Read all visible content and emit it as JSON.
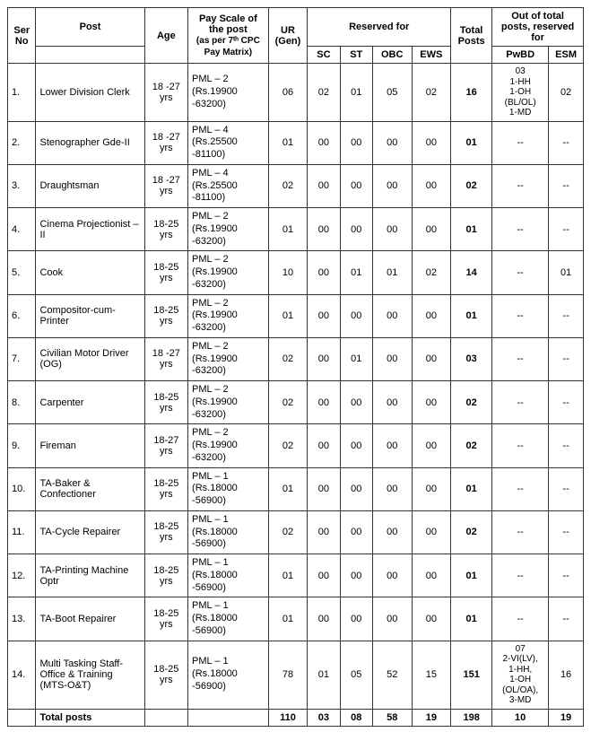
{
  "headers": {
    "ser": "Ser No",
    "post": "Post",
    "age": "Age",
    "pay": "Pay Scale of the post",
    "pay_note": "(as per 7ᵗʰ CPC Pay Matrix)",
    "ur": "UR (Gen)",
    "reserved": "Reserved for",
    "sc": "SC",
    "st": "ST",
    "obc": "OBC",
    "ews": "EWS",
    "total": "Total Posts",
    "out_of": "Out of total posts, reserved for",
    "pwbd": "PwBD",
    "esm": "ESM"
  },
  "rows": [
    {
      "ser": "1.",
      "post": "Lower Division Clerk",
      "age": "18 -27 yrs",
      "pay": "PML – 2 (Rs.19900 -63200)",
      "ur": "06",
      "sc": "02",
      "st": "01",
      "obc": "05",
      "ews": "02",
      "total": "16",
      "pwbd": "03\n1-HH\n1-OH\n(BL/OL)\n1-MD",
      "esm": "02"
    },
    {
      "ser": "2.",
      "post": "Stenographer Gde-II",
      "age": "18 -27 yrs",
      "pay": "PML – 4 (Rs.25500 -81100)",
      "ur": "01",
      "sc": "00",
      "st": "00",
      "obc": "00",
      "ews": "00",
      "total": "01",
      "pwbd": "--",
      "esm": "--"
    },
    {
      "ser": "3.",
      "post": "Draughtsman",
      "age": "18 -27 yrs",
      "pay": "PML – 4 (Rs.25500 -81100)",
      "ur": "02",
      "sc": "00",
      "st": "00",
      "obc": "00",
      "ews": "00",
      "total": "02",
      "pwbd": "--",
      "esm": "--"
    },
    {
      "ser": "4.",
      "post": "Cinema Projectionist –II",
      "age": "18-25 yrs",
      "pay": "PML – 2 (Rs.19900 -63200)",
      "ur": "01",
      "sc": "00",
      "st": "00",
      "obc": "00",
      "ews": "00",
      "total": "01",
      "pwbd": "--",
      "esm": "--"
    },
    {
      "ser": "5.",
      "post": "Cook",
      "age": "18-25 yrs",
      "pay": "PML – 2 (Rs.19900 -63200)",
      "ur": "10",
      "sc": "00",
      "st": "01",
      "obc": "01",
      "ews": "02",
      "total": "14",
      "pwbd": "--",
      "esm": "01"
    },
    {
      "ser": "6.",
      "post": "Compositor-cum-Printer",
      "age": "18-25 yrs",
      "pay": "PML – 2 (Rs.19900 -63200)",
      "ur": "01",
      "sc": "00",
      "st": "00",
      "obc": "00",
      "ews": "00",
      "total": "01",
      "pwbd": "--",
      "esm": "--"
    },
    {
      "ser": "7.",
      "post": "Civilian Motor Driver (OG)",
      "age": "18 -27 yrs",
      "pay": "PML – 2 (Rs.19900 -63200)",
      "ur": "02",
      "sc": "00",
      "st": "01",
      "obc": "00",
      "ews": "00",
      "total": "03",
      "pwbd": "--",
      "esm": "--"
    },
    {
      "ser": "8.",
      "post": "Carpenter",
      "age": "18-25 yrs",
      "pay": "PML – 2 (Rs.19900 -63200)",
      "ur": "02",
      "sc": "00",
      "st": "00",
      "obc": "00",
      "ews": "00",
      "total": "02",
      "pwbd": "--",
      "esm": "--"
    },
    {
      "ser": "9.",
      "post": "Fireman",
      "age": "18-27 yrs",
      "pay": "PML – 2 (Rs.19900 -63200)",
      "ur": "02",
      "sc": "00",
      "st": "00",
      "obc": "00",
      "ews": "00",
      "total": "02",
      "pwbd": "--",
      "esm": "--"
    },
    {
      "ser": "10.",
      "post": "TA-Baker & Confectioner",
      "age": "18-25 yrs",
      "pay": "PML – 1 (Rs.18000 -56900)",
      "ur": "01",
      "sc": "00",
      "st": "00",
      "obc": "00",
      "ews": "00",
      "total": "01",
      "pwbd": "--",
      "esm": "--"
    },
    {
      "ser": "11.",
      "post": "TA-Cycle Repairer",
      "age": "18-25 yrs",
      "pay": "PML – 1 (Rs.18000 -56900)",
      "ur": "02",
      "sc": "00",
      "st": "00",
      "obc": "00",
      "ews": "00",
      "total": "02",
      "pwbd": "--",
      "esm": "--"
    },
    {
      "ser": "12.",
      "post": "TA-Printing Machine Optr",
      "age": "18-25 yrs",
      "pay": "PML – 1 (Rs.18000 -56900)",
      "ur": "01",
      "sc": "00",
      "st": "00",
      "obc": "00",
      "ews": "00",
      "total": "01",
      "pwbd": "--",
      "esm": "--"
    },
    {
      "ser": "13.",
      "post": "TA-Boot Repairer",
      "age": "18-25 yrs",
      "pay": "PML – 1 (Rs.18000 -56900)",
      "ur": "01",
      "sc": "00",
      "st": "00",
      "obc": "00",
      "ews": "00",
      "total": "01",
      "pwbd": "--",
      "esm": "--"
    },
    {
      "ser": "14.",
      "post": "Multi Tasking Staff- Office & Training (MTS-O&T)",
      "age": "18-25 yrs",
      "pay": "PML – 1 (Rs.18000 -56900)",
      "ur": "78",
      "sc": "01",
      "st": "05",
      "obc": "52",
      "ews": "15",
      "total": "151",
      "pwbd": "07\n2-VI(LV),\n1-HH,\n1-OH\n(OL/OA),\n3-MD",
      "esm": "16"
    }
  ],
  "footer": {
    "label": "Total posts",
    "ur": "110",
    "sc": "03",
    "st": "08",
    "obc": "58",
    "ews": "19",
    "total": "198",
    "pwbd": "10",
    "esm": "19"
  }
}
